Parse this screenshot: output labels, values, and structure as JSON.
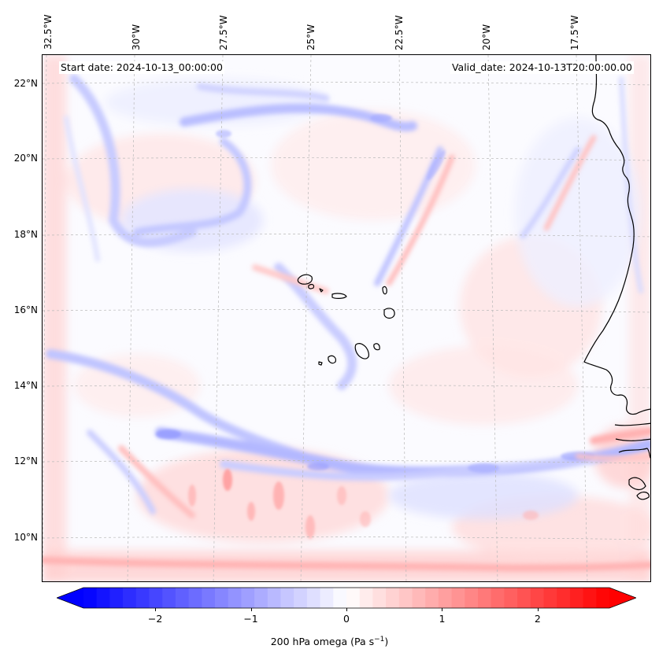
{
  "map": {
    "start_date": "Start date: 2024-10-13_00:00:00",
    "valid_date": "Valid_date: 2024-10-13T20:00:00.00",
    "longitude_labels": [
      "32.5°W",
      "30°W",
      "27.5°W",
      "25°W",
      "22.5°W",
      "20°W",
      "17.5°W"
    ],
    "latitude_labels": [
      "22°N",
      "20°N",
      "18°N",
      "16°N",
      "14°N",
      "12°N",
      "10°N"
    ],
    "field": "omega",
    "colormap": "bwr",
    "colors": {
      "negative": "#0000ff",
      "zero": "#ffffff",
      "positive": "#ff0000",
      "coastline": "#000000",
      "gridline": "#b0b0b0"
    }
  },
  "colorbar": {
    "min": -2.75,
    "max": 2.75,
    "extend": "both",
    "ticks": [
      "−2",
      "−1",
      "0",
      "1",
      "2"
    ],
    "tick_values": [
      -2,
      -1,
      0,
      1,
      2
    ],
    "label_prefix": "200 hPa omega (Pa s",
    "label_exp": "−1",
    "label_suffix": ")"
  }
}
